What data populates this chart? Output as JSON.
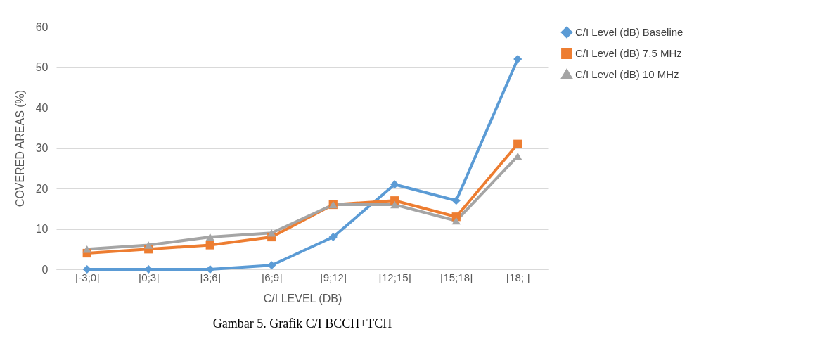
{
  "chart_data": {
    "type": "line",
    "xlabel": "C/I LEVEL (DB)",
    "ylabel": "COVERED AREAS (%)",
    "categories": [
      "[-3;0]",
      "[0;3]",
      "[3;6]",
      "[6;9]",
      "[9;12]",
      "[12;15]",
      "[15;18]",
      "[18;   ]"
    ],
    "series": [
      {
        "name": "C/I Level (dB) Baseline",
        "color": "#5b9bd5",
        "marker": "diamond",
        "values": [
          0,
          0,
          0,
          1,
          8,
          21,
          17,
          52
        ]
      },
      {
        "name": "C/I Level (dB) 7.5 MHz",
        "color": "#ed7d31",
        "marker": "square",
        "values": [
          4,
          5,
          6,
          8,
          16,
          17,
          13,
          31
        ]
      },
      {
        "name": "C/I Level (dB) 10 MHz",
        "color": "#a5a5a5",
        "marker": "triangle",
        "values": [
          5,
          6,
          8,
          9,
          16,
          16,
          12,
          28
        ]
      }
    ],
    "ylim": [
      0,
      60
    ],
    "yticks": [
      0,
      10,
      20,
      30,
      40,
      50,
      60
    ],
    "grid": "y",
    "legend": "right",
    "annotations": [
      "Gambar 5. Grafik C/I BCCH+TCH"
    ]
  }
}
